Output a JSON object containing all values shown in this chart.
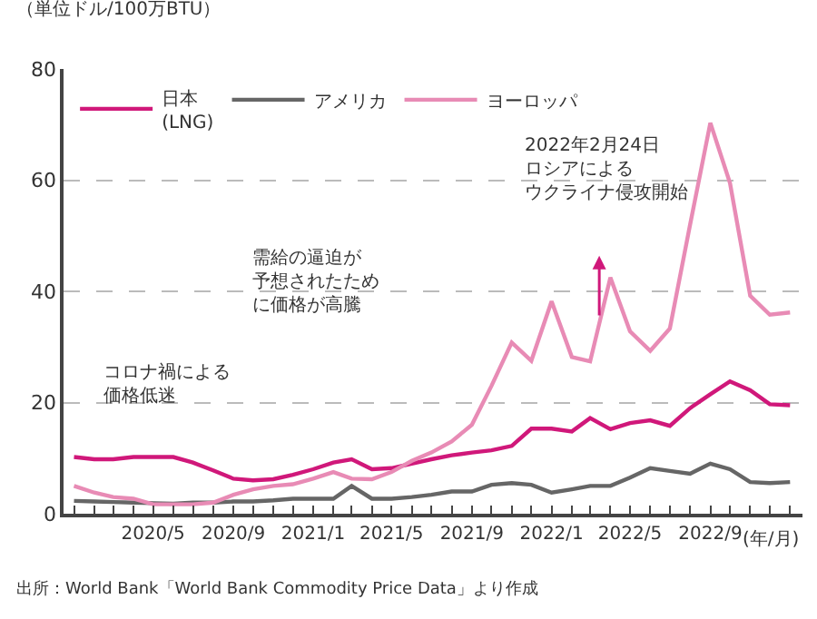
{
  "chart_data": {
    "type": "line",
    "ylabel": "（単位ドル/100万BTU）",
    "xlabel": "(年/月)",
    "x": [
      "2020-01",
      "2020-02",
      "2020-03",
      "2020-04",
      "2020-05",
      "2020-06",
      "2020-07",
      "2020-08",
      "2020-09",
      "2020-10",
      "2020-11",
      "2020-12",
      "2021-01",
      "2021-02",
      "2021-03",
      "2021-04",
      "2021-05",
      "2021-06",
      "2021-07",
      "2021-08",
      "2021-09",
      "2021-10",
      "2021-11",
      "2021-12",
      "2022-01",
      "2022-02",
      "2022-03",
      "2022-04",
      "2022-05",
      "2022-06",
      "2022-07",
      "2022-08",
      "2022-09",
      "2022-10",
      "2022-11",
      "2022-12",
      "2023-01"
    ],
    "series": [
      {
        "name": "日本\n(LNG)",
        "color": "#d0187a",
        "values": [
          10.2,
          9.8,
          9.8,
          10.2,
          10.2,
          10.2,
          9.2,
          7.8,
          6.3,
          6,
          6.2,
          7,
          8,
          9.2,
          9.8,
          8,
          8.2,
          9,
          9.8,
          10.5,
          11,
          11.4,
          12.2,
          15.3,
          15.3,
          14.8,
          17.2,
          15.2,
          16.3,
          16.8,
          15.8,
          19,
          21.5,
          23.8,
          22.2,
          19.7,
          19.5
        ]
      },
      {
        "name": "アメリカ",
        "color": "#666666",
        "values": [
          2.3,
          2.2,
          2.1,
          2,
          1.9,
          1.8,
          2,
          2,
          2.2,
          2.2,
          2.4,
          2.7,
          2.7,
          2.7,
          5,
          2.7,
          2.7,
          3,
          3.4,
          4,
          4,
          5.2,
          5.5,
          5.2,
          3.8,
          4.4,
          5,
          5,
          6.5,
          8.2,
          7.7,
          7.2,
          9,
          8,
          5.7,
          5.5,
          5.7
        ]
      },
      {
        "name": "ヨーロッパ",
        "color": "#e88bb5",
        "values": [
          5,
          3.8,
          3,
          2.7,
          1.7,
          1.7,
          1.7,
          2,
          3.4,
          4.4,
          5,
          5.3,
          6.3,
          7.5,
          6.3,
          6.2,
          7.5,
          9.5,
          11,
          13,
          16,
          23,
          30.8,
          27.5,
          38.2,
          28.2,
          27.4,
          42.5,
          32.8,
          29.3,
          33.3,
          52,
          70.3,
          59.5,
          39.2,
          35.8,
          36.2
        ]
      }
    ],
    "xlim": [
      "2019-12-16",
      "2023-01-20"
    ],
    "xticks": [
      {
        "value": "2020-01",
        "label": null
      },
      {
        "value": "2020-02",
        "label": null
      },
      {
        "value": "2020-03",
        "label": null
      },
      {
        "value": "2020-04",
        "label": null
      },
      {
        "value": "2020-05",
        "label": "2020/5"
      },
      {
        "value": "2020-06",
        "label": null
      },
      {
        "value": "2020-07",
        "label": null
      },
      {
        "value": "2020-08",
        "label": null
      },
      {
        "value": "2020-09",
        "label": "2020/9"
      },
      {
        "value": "2020-10",
        "label": null
      },
      {
        "value": "2020-11",
        "label": null
      },
      {
        "value": "2020-12",
        "label": null
      },
      {
        "value": "2021-01",
        "label": "2021/1"
      },
      {
        "value": "2021-02",
        "label": null
      },
      {
        "value": "2021-03",
        "label": null
      },
      {
        "value": "2021-04",
        "label": null
      },
      {
        "value": "2021-05",
        "label": "2021/5"
      },
      {
        "value": "2021-06",
        "label": null
      },
      {
        "value": "2021-07",
        "label": null
      },
      {
        "value": "2021-08",
        "label": null
      },
      {
        "value": "2021-09",
        "label": "2021/9"
      },
      {
        "value": "2021-10",
        "label": null
      },
      {
        "value": "2021-11",
        "label": null
      },
      {
        "value": "2021-12",
        "label": null
      },
      {
        "value": "2022-01",
        "label": "2022/1"
      },
      {
        "value": "2022-02",
        "label": null
      },
      {
        "value": "2022-03",
        "label": null
      },
      {
        "value": "2022-04",
        "label": null
      },
      {
        "value": "2022-05",
        "label": "2022/5"
      },
      {
        "value": "2022-06",
        "label": null
      },
      {
        "value": "2022-07",
        "label": null
      },
      {
        "value": "2022-08",
        "label": null
      },
      {
        "value": "2022-09",
        "label": "2022/9"
      },
      {
        "value": "2022-10",
        "label": null
      },
      {
        "value": "2022-11",
        "label": null
      },
      {
        "value": "2022-12",
        "label": null
      },
      {
        "value": "2023-01",
        "label": null
      }
    ],
    "ylim": [
      0,
      80
    ],
    "yticks": [
      0,
      20,
      40,
      60,
      80
    ],
    "grid": "y",
    "legend": "top left",
    "marker": "none",
    "line_style": "solid",
    "annotations": [
      "2022年2月24日ロシアによるウクライナ侵攻開始",
      "需給の逼迫が予想されたために価格が高騰",
      "コロナ禍による価格低迷",
      "出所：World Bank「World Bank Commodity Price Data」より作成"
    ]
  }
}
